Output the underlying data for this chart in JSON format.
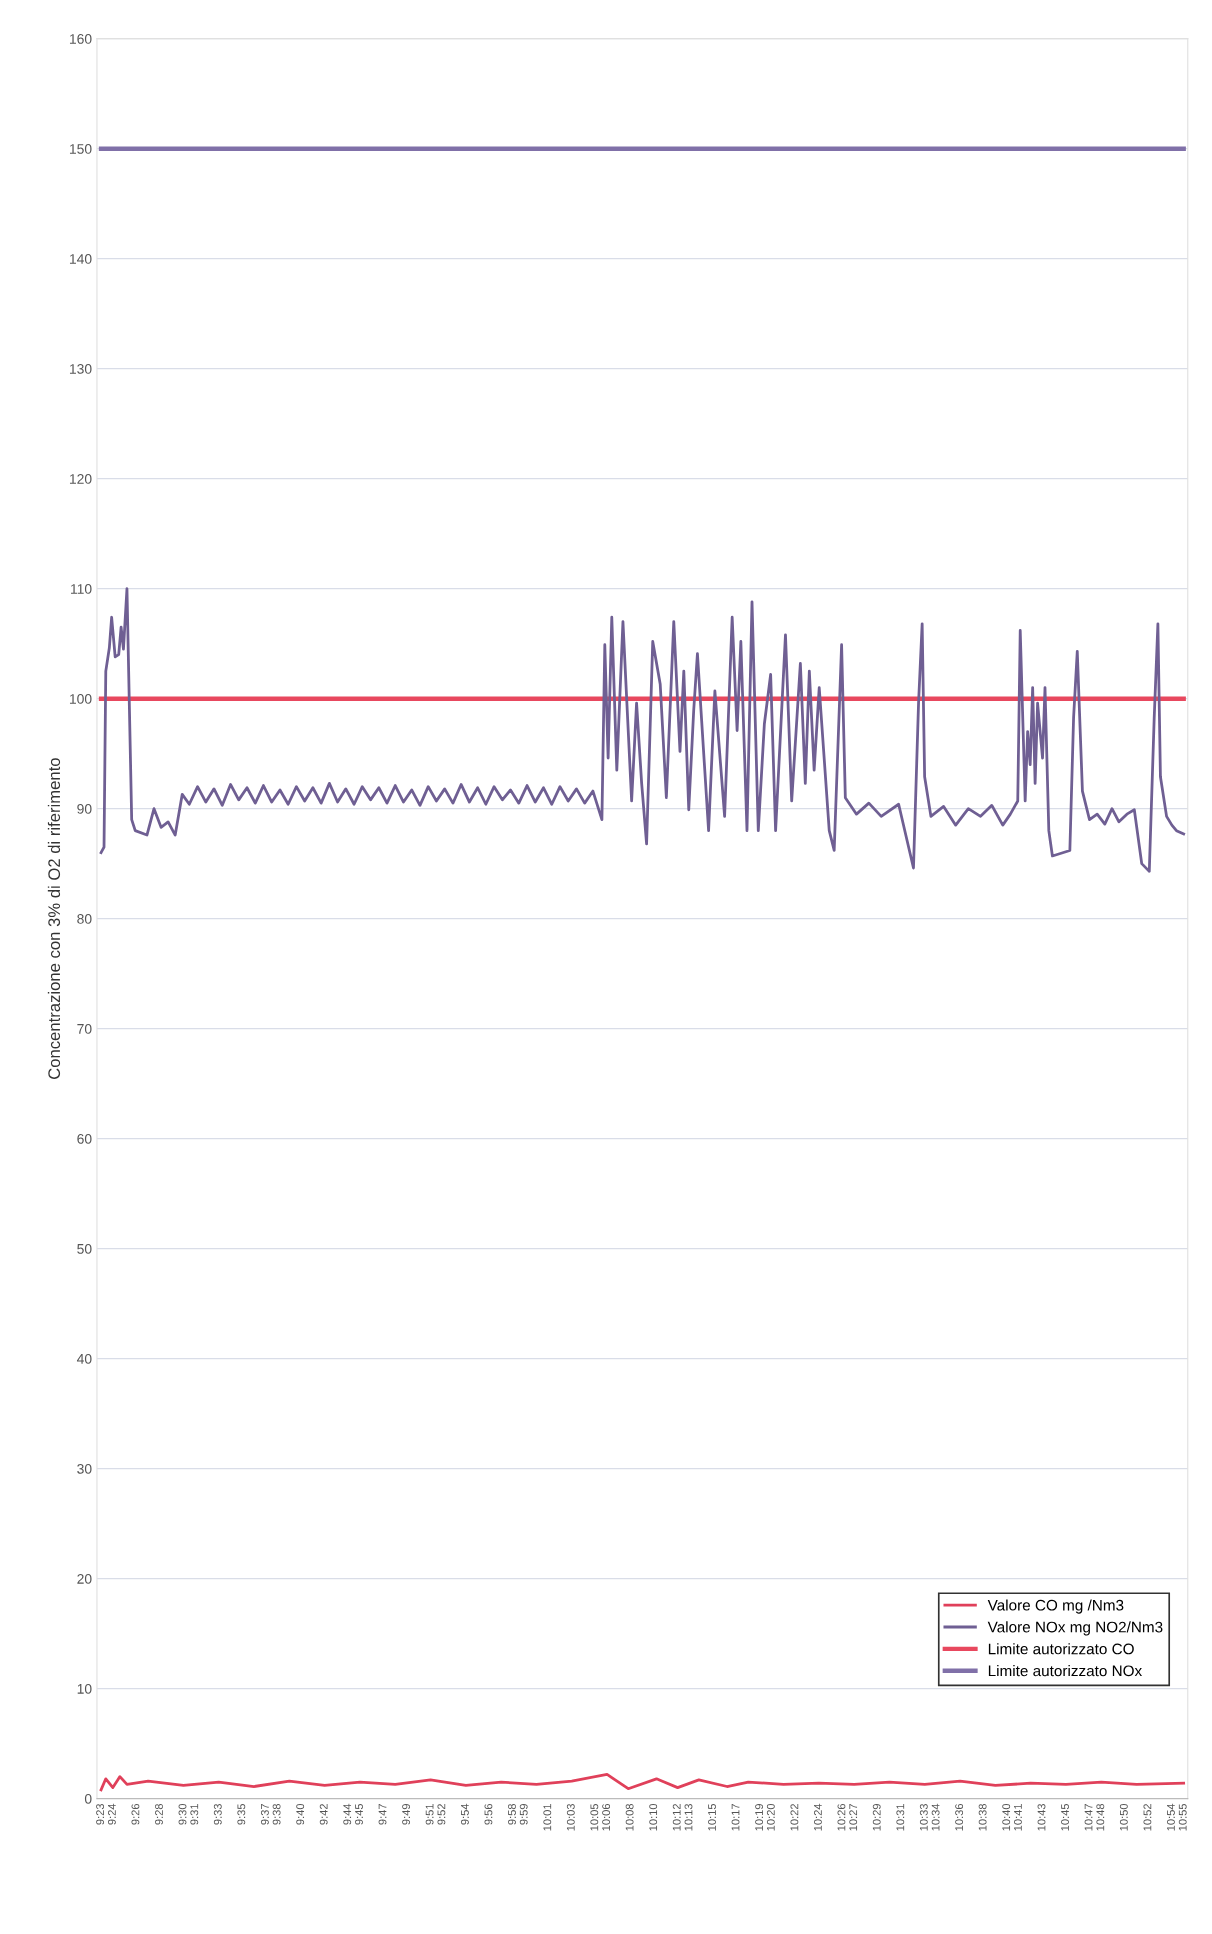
{
  "chart_data": {
    "type": "line",
    "ylabel": "Concentrazione con 3% di O2 di riferimento",
    "ylim": [
      0,
      160
    ],
    "yticks": [
      0,
      10,
      20,
      30,
      40,
      50,
      60,
      70,
      80,
      90,
      100,
      110,
      120,
      130,
      140,
      150,
      160
    ],
    "xlim": [
      9.3775,
      10.9225
    ],
    "xticks": [
      {
        "value": 9.3833,
        "label": "9:23"
      },
      {
        "value": 9.4,
        "label": "9:24"
      },
      {
        "value": 9.4333,
        "label": "9:26"
      },
      {
        "value": 9.4667,
        "label": "9:28"
      },
      {
        "value": 9.5,
        "label": "9:30"
      },
      {
        "value": 9.5167,
        "label": "9:31"
      },
      {
        "value": 9.55,
        "label": "9:33"
      },
      {
        "value": 9.5833,
        "label": "9:35"
      },
      {
        "value": 9.6167,
        "label": "9:37"
      },
      {
        "value": 9.6333,
        "label": "9:38"
      },
      {
        "value": 9.6667,
        "label": "9:40"
      },
      {
        "value": 9.7,
        "label": "9:42"
      },
      {
        "value": 9.7333,
        "label": "9:44"
      },
      {
        "value": 9.75,
        "label": "9:45"
      },
      {
        "value": 9.7833,
        "label": "9:47"
      },
      {
        "value": 9.8167,
        "label": "9:49"
      },
      {
        "value": 9.85,
        "label": "9:51"
      },
      {
        "value": 9.8667,
        "label": "9:52"
      },
      {
        "value": 9.9,
        "label": "9:54"
      },
      {
        "value": 9.9333,
        "label": "9:56"
      },
      {
        "value": 9.9667,
        "label": "9:58"
      },
      {
        "value": 9.9833,
        "label": "9:59"
      },
      {
        "value": 10.0167,
        "label": "10:01"
      },
      {
        "value": 10.05,
        "label": "10:03"
      },
      {
        "value": 10.0833,
        "label": "10:05"
      },
      {
        "value": 10.1,
        "label": "10:06"
      },
      {
        "value": 10.1333,
        "label": "10:08"
      },
      {
        "value": 10.1667,
        "label": "10:10"
      },
      {
        "value": 10.2,
        "label": "10:12"
      },
      {
        "value": 10.2167,
        "label": "10:13"
      },
      {
        "value": 10.25,
        "label": "10:15"
      },
      {
        "value": 10.2833,
        "label": "10:17"
      },
      {
        "value": 10.3167,
        "label": "10:19"
      },
      {
        "value": 10.3333,
        "label": "10:20"
      },
      {
        "value": 10.3667,
        "label": "10:22"
      },
      {
        "value": 10.4,
        "label": "10:24"
      },
      {
        "value": 10.4333,
        "label": "10:26"
      },
      {
        "value": 10.45,
        "label": "10:27"
      },
      {
        "value": 10.4833,
        "label": "10:29"
      },
      {
        "value": 10.5167,
        "label": "10:31"
      },
      {
        "value": 10.55,
        "label": "10:33"
      },
      {
        "value": 10.5667,
        "label": "10:34"
      },
      {
        "value": 10.6,
        "label": "10:36"
      },
      {
        "value": 10.6333,
        "label": "10:38"
      },
      {
        "value": 10.6667,
        "label": "10:40"
      },
      {
        "value": 10.6833,
        "label": "10:41"
      },
      {
        "value": 10.7167,
        "label": "10:43"
      },
      {
        "value": 10.75,
        "label": "10:45"
      },
      {
        "value": 10.7833,
        "label": "10:47"
      },
      {
        "value": 10.8,
        "label": "10:48"
      },
      {
        "value": 10.8333,
        "label": "10:50"
      },
      {
        "value": 10.8667,
        "label": "10:52"
      },
      {
        "value": 10.9,
        "label": "10:54"
      },
      {
        "value": 10.9167,
        "label": "10:55"
      }
    ],
    "grid": "y",
    "legend": "lower right",
    "series": [
      {
        "name": "Valore CO mg /Nm3",
        "color": "#e0405a",
        "x": [
          9.3833,
          9.39,
          9.4,
          9.41,
          9.42,
          9.45,
          9.5,
          9.55,
          9.6,
          9.65,
          9.7,
          9.75,
          9.8,
          9.85,
          9.9,
          9.95,
          10.0,
          10.05,
          10.1,
          10.13,
          10.17,
          10.2,
          10.23,
          10.27,
          10.3,
          10.35,
          10.4,
          10.45,
          10.5,
          10.55,
          10.6,
          10.65,
          10.7,
          10.75,
          10.8,
          10.85,
          10.9167
        ],
        "values": [
          0.8,
          1.8,
          1.0,
          2.0,
          1.3,
          1.6,
          1.2,
          1.5,
          1.1,
          1.6,
          1.2,
          1.5,
          1.3,
          1.7,
          1.2,
          1.5,
          1.3,
          1.6,
          2.2,
          0.9,
          1.8,
          1.0,
          1.7,
          1.1,
          1.5,
          1.3,
          1.4,
          1.3,
          1.5,
          1.3,
          1.6,
          1.2,
          1.4,
          1.3,
          1.5,
          1.3,
          1.4
        ]
      },
      {
        "name": "Valore NOx mg NO2/Nm3",
        "color": "#6f5f93",
        "x": [
          9.3833,
          9.3875,
          9.39,
          9.395,
          9.3983,
          9.4033,
          9.4083,
          9.4117,
          9.415,
          9.42,
          9.4267,
          9.4317,
          9.4483,
          9.4583,
          9.4683,
          9.4783,
          9.4883,
          9.4983,
          9.5083,
          9.52,
          9.5317,
          9.5433,
          9.555,
          9.5667,
          9.5783,
          9.59,
          9.6017,
          9.6133,
          9.625,
          9.6367,
          9.6483,
          9.66,
          9.6717,
          9.6833,
          9.695,
          9.7067,
          9.7183,
          9.73,
          9.7417,
          9.7533,
          9.765,
          9.7767,
          9.7883,
          9.8,
          9.8117,
          9.8233,
          9.835,
          9.8467,
          9.8583,
          9.87,
          9.8817,
          9.8933,
          9.905,
          9.9167,
          9.9283,
          9.94,
          9.9517,
          9.9633,
          9.975,
          9.9867,
          9.9983,
          10.01,
          10.0217,
          10.0333,
          10.045,
          10.0567,
          10.0683,
          10.08,
          10.0927,
          10.0968,
          10.1015,
          10.1067,
          10.1138,
          10.1225,
          10.1348,
          10.1418,
          10.149,
          10.156,
          10.1647,
          10.1753,
          10.184,
          10.1945,
          10.2033,
          10.2087,
          10.2157,
          10.2227,
          10.228,
          10.2438,
          10.2527,
          10.2665,
          10.2772,
          10.2842,
          10.2895,
          10.2982,
          10.3053,
          10.3142,
          10.3228,
          10.3317,
          10.3387,
          10.3527,
          10.3615,
          10.3738,
          10.3808,
          10.3865,
          10.3933,
          10.4005,
          10.4147,
          10.4217,
          10.4322,
          10.4375,
          10.4533,
          10.4708,
          10.4883,
          10.513,
          10.534,
          10.5412,
          10.5463,
          10.5498,
          10.5587,
          10.5767,
          10.5938,
          10.6117,
          10.629,
          10.645,
          10.6605,
          10.6712,
          10.6817,
          10.6852,
          10.6922,
          10.6957,
          10.6993,
          10.7028,
          10.7063,
          10.7098,
          10.7168,
          10.7203,
          10.7257,
          10.7308,
          10.7555,
          10.7608,
          10.766,
          10.7733,
          10.7833,
          10.7942,
          10.805,
          10.8152,
          10.825,
          10.8363,
          10.8468,
          10.8573,
          10.868,
          10.875,
          10.8802,
          10.8838,
          10.8925,
          10.9,
          10.9065,
          10.9167
        ],
        "values": [
          86,
          86.5,
          102.5,
          104.6,
          107.4,
          103.8,
          104,
          106.5,
          104.5,
          110,
          89,
          88,
          87.6,
          90,
          88.3,
          88.8,
          87.6,
          91.3,
          90.4,
          92.0,
          90.6,
          91.8,
          90.3,
          92.2,
          90.8,
          91.9,
          90.5,
          92.1,
          90.6,
          91.7,
          90.4,
          92.0,
          90.7,
          91.9,
          90.5,
          92.3,
          90.6,
          91.8,
          90.4,
          92.0,
          90.8,
          91.9,
          90.5,
          92.1,
          90.6,
          91.7,
          90.3,
          92.0,
          90.7,
          91.8,
          90.5,
          92.2,
          90.6,
          91.9,
          90.4,
          92.0,
          90.8,
          91.7,
          90.5,
          92.1,
          90.6,
          91.9,
          90.4,
          92.0,
          90.7,
          91.8,
          90.5,
          91.6,
          89,
          104.9,
          94.6,
          107.4,
          93.5,
          107,
          90.7,
          99.6,
          92.3,
          86.8,
          105.2,
          101.3,
          91,
          107,
          95.2,
          102.5,
          89.9,
          98.9,
          104.1,
          88,
          100.7,
          89.3,
          107.4,
          97.1,
          105.2,
          88,
          108.8,
          88,
          97.7,
          102.2,
          88,
          105.8,
          90.7,
          103.2,
          92.3,
          102.5,
          93.5,
          101,
          88,
          86.2,
          104.9,
          91,
          89.5,
          90.5,
          89.3,
          90.4,
          84.6,
          99.6,
          106.8,
          92.9,
          89.3,
          90.2,
          88.5,
          90,
          89.3,
          90.3,
          88.5,
          89.5,
          90.7,
          106.2,
          90.7,
          97,
          94,
          101,
          92.3,
          99.6,
          94.6,
          101,
          88,
          85.7,
          86.2,
          98.3,
          104.3,
          91.6,
          89,
          89.5,
          88.6,
          90,
          88.8,
          89.5,
          89.9,
          85,
          84.3,
          98.3,
          106.8,
          92.9,
          89.3,
          88.5,
          88,
          87.7
        ]
      },
      {
        "name": "Limite autorizzato CO",
        "color": "#e8485e",
        "x": [
          9.3833,
          10.9167
        ],
        "values": [
          100,
          100
        ]
      },
      {
        "name": "Limite autorizzato NOx",
        "color": "#8070a8",
        "x": [
          9.3833,
          10.9167
        ],
        "values": [
          150,
          150
        ]
      }
    ]
  }
}
